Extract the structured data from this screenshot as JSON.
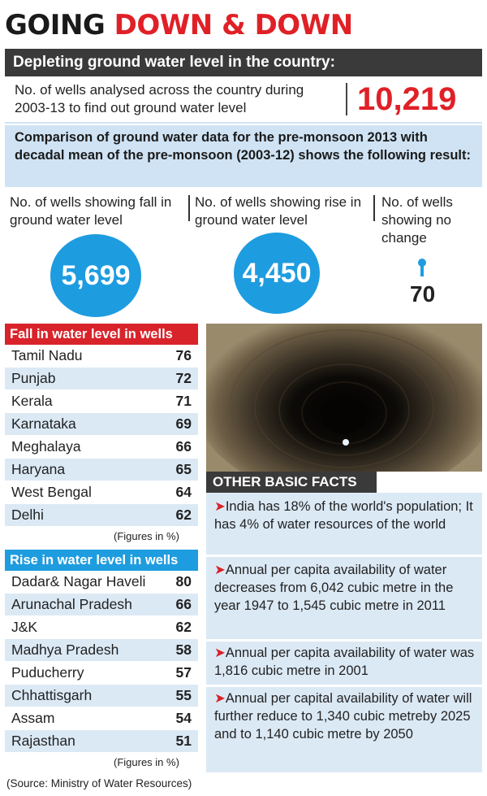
{
  "title": {
    "part1": "GOING ",
    "part2": "DOWN & DOWN"
  },
  "subhead": "Depleting ground water level in the country:",
  "wells": {
    "text": "No. of wells analysed across the country during 2003-13 to find out ground water level",
    "count": "10,219"
  },
  "comparison": "Comparison of ground water data for the pre-monsoon 2013 with decadal mean of the pre-monsoon (2003-12) shows the following result:",
  "stats": {
    "fall_label": "No. of wells showing fall in ground water level",
    "fall_value": "5,699",
    "rise_label": "No. of wells showing rise in ground water level",
    "rise_value": "4,450",
    "nochange_label": "No. of wells showing no change",
    "nochange_value": "70"
  },
  "fall": {
    "header": "Fall in water level in wells",
    "rows": [
      {
        "state": "Tamil Nadu",
        "value": "76"
      },
      {
        "state": "Punjab",
        "value": "72"
      },
      {
        "state": "Kerala",
        "value": "71"
      },
      {
        "state": "Karnataka",
        "value": "69"
      },
      {
        "state": "Meghalaya",
        "value": "66"
      },
      {
        "state": "Haryana",
        "value": "65"
      },
      {
        "state": "West Bengal",
        "value": "64"
      },
      {
        "state": "Delhi",
        "value": "62"
      }
    ],
    "note": "(Figures in %)"
  },
  "rise": {
    "header": "Rise in water level in wells",
    "rows": [
      {
        "state": "Dadar& Nagar Haveli",
        "value": "80"
      },
      {
        "state": "Arunachal Pradesh",
        "value": "66"
      },
      {
        "state": "J&K",
        "value": "62"
      },
      {
        "state": "Madhya Pradesh",
        "value": "58"
      },
      {
        "state": "Puducherry",
        "value": "57"
      },
      {
        "state": "Chhattisgarh",
        "value": "55"
      },
      {
        "state": "Assam",
        "value": "54"
      },
      {
        "state": "Rajasthan",
        "value": "51"
      }
    ],
    "note": "(Figures in %)"
  },
  "facts": {
    "header": "OTHER BASIC FACTS",
    "items": [
      "India has 18% of the world's population; It has 4% of water resources of the world",
      "Annual per capita availability of water decreases from 6,042 cubic metre in the year 1947 to 1,545 cubic metre in 2011",
      "Annual per capita availability of water was 1,816 cubic metre in 2001",
      "Annual per capital availability of water will further reduce to 1,340 cubic metreby 2025 and to 1,140 cubic metre by 2050"
    ]
  },
  "source": "(Source: Ministry of Water Resources)",
  "colors": {
    "accent_red": "#e02027",
    "accent_blue": "#1e9ce0",
    "panel_blue": "#dbe9f5",
    "dark_bar": "#3a3a3a"
  },
  "image": {
    "subject": "well-photo"
  }
}
